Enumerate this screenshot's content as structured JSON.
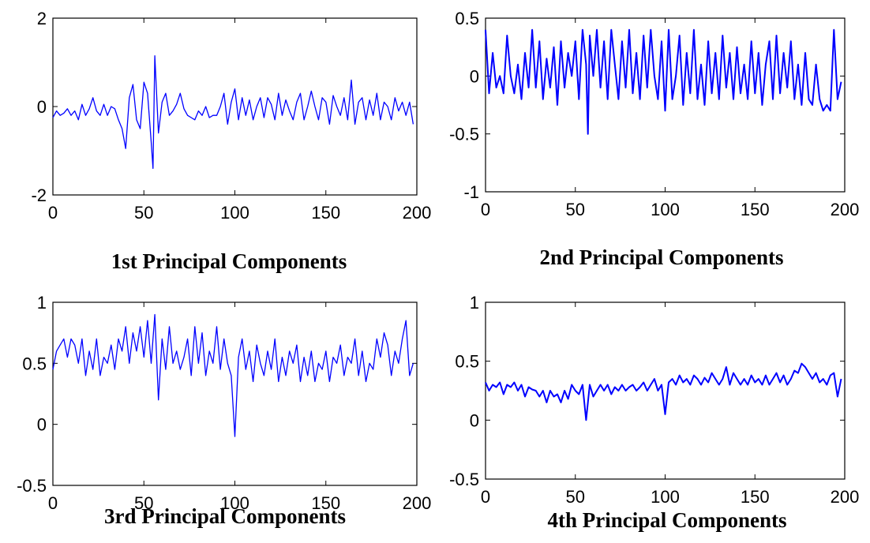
{
  "chart_data": [
    {
      "type": "line",
      "title": "1st Principal Components",
      "xlim": [
        0,
        200
      ],
      "ylim": [
        -2,
        2
      ],
      "xticks": [
        0,
        50,
        100,
        150,
        200
      ],
      "yticks": [
        -2,
        0,
        2
      ],
      "xtick_labels": [
        "0",
        "50",
        "100",
        "150",
        "200"
      ],
      "ytick_labels": [
        "-2",
        "0",
        "2"
      ],
      "series": [
        {
          "color": "#0000ff",
          "x": [
            0,
            2,
            4,
            6,
            8,
            10,
            12,
            14,
            16,
            18,
            20,
            22,
            24,
            26,
            28,
            30,
            32,
            34,
            36,
            38,
            40,
            42,
            44,
            46,
            48,
            50,
            52,
            54,
            55,
            56,
            58,
            60,
            62,
            64,
            66,
            68,
            70,
            72,
            74,
            76,
            78,
            80,
            82,
            84,
            86,
            88,
            90,
            92,
            94,
            96,
            98,
            100,
            102,
            104,
            106,
            108,
            110,
            112,
            114,
            116,
            118,
            120,
            122,
            124,
            126,
            128,
            130,
            132,
            134,
            136,
            138,
            140,
            142,
            144,
            146,
            148,
            150,
            152,
            154,
            156,
            158,
            160,
            162,
            164,
            166,
            168,
            170,
            172,
            174,
            176,
            178,
            180,
            182,
            184,
            186,
            188,
            190,
            192,
            194,
            196,
            198
          ],
          "y": [
            -0.25,
            -0.1,
            -0.2,
            -0.15,
            -0.05,
            -0.2,
            -0.1,
            -0.3,
            0.05,
            -0.2,
            -0.05,
            0.2,
            -0.1,
            -0.2,
            0.05,
            -0.2,
            0.0,
            -0.05,
            -0.3,
            -0.5,
            -0.95,
            0.2,
            0.5,
            -0.3,
            -0.5,
            0.55,
            0.3,
            -0.8,
            -1.4,
            1.15,
            -0.6,
            0.1,
            0.3,
            -0.2,
            -0.1,
            0.05,
            0.3,
            -0.05,
            -0.2,
            -0.25,
            -0.3,
            -0.1,
            -0.2,
            0.0,
            -0.25,
            -0.2,
            -0.2,
            0.0,
            0.3,
            -0.4,
            0.1,
            0.4,
            -0.3,
            0.2,
            -0.2,
            0.15,
            -0.3,
            0.0,
            0.2,
            -0.25,
            0.2,
            0.05,
            -0.3,
            0.3,
            -0.2,
            0.15,
            -0.1,
            -0.3,
            0.1,
            0.3,
            -0.3,
            0.0,
            0.35,
            0.0,
            -0.3,
            0.2,
            0.1,
            -0.4,
            0.25,
            0.0,
            -0.2,
            0.2,
            -0.3,
            0.6,
            -0.4,
            0.1,
            0.2,
            -0.3,
            0.15,
            -0.2,
            0.3,
            -0.3,
            0.1,
            0.0,
            -0.3,
            0.2,
            -0.1,
            0.1,
            -0.2,
            0.1,
            -0.4
          ]
        }
      ]
    },
    {
      "type": "line",
      "title": "2nd Principal Components",
      "xlim": [
        0,
        200
      ],
      "ylim": [
        -1,
        0.5
      ],
      "xticks": [
        0,
        50,
        100,
        150,
        200
      ],
      "yticks": [
        -1,
        -0.5,
        0,
        0.5
      ],
      "xtick_labels": [
        "0",
        "50",
        "100",
        "150",
        "200"
      ],
      "ytick_labels": [
        "-1",
        "-0.5",
        "0",
        "0.5"
      ],
      "series": [
        {
          "color": "#0000ff",
          "x": [
            0,
            2,
            4,
            6,
            8,
            10,
            12,
            14,
            16,
            18,
            20,
            22,
            24,
            26,
            28,
            30,
            32,
            34,
            36,
            38,
            40,
            42,
            44,
            46,
            48,
            50,
            52,
            54,
            56,
            57,
            58,
            60,
            62,
            64,
            66,
            68,
            70,
            72,
            74,
            76,
            78,
            80,
            82,
            84,
            86,
            88,
            90,
            92,
            94,
            96,
            98,
            100,
            102,
            104,
            106,
            108,
            110,
            112,
            114,
            116,
            118,
            120,
            122,
            124,
            126,
            128,
            130,
            132,
            134,
            136,
            138,
            140,
            142,
            144,
            146,
            148,
            150,
            152,
            154,
            156,
            158,
            160,
            162,
            164,
            166,
            168,
            170,
            172,
            174,
            176,
            178,
            180,
            182,
            184,
            186,
            188,
            190,
            192,
            194,
            196,
            198
          ],
          "y": [
            0.4,
            -0.15,
            0.2,
            -0.1,
            0.0,
            -0.15,
            0.35,
            0.0,
            -0.15,
            0.1,
            -0.2,
            0.2,
            -0.1,
            0.4,
            -0.1,
            0.3,
            -0.2,
            0.15,
            -0.1,
            0.25,
            -0.25,
            0.3,
            -0.1,
            0.2,
            0.0,
            0.3,
            -0.2,
            0.4,
            0.1,
            -0.5,
            0.35,
            0.0,
            0.4,
            -0.1,
            0.3,
            -0.2,
            0.4,
            0.1,
            -0.2,
            0.3,
            -0.1,
            0.4,
            -0.15,
            0.2,
            -0.2,
            0.35,
            -0.1,
            0.4,
            0.0,
            -0.2,
            0.3,
            -0.3,
            0.4,
            -0.2,
            0.0,
            0.35,
            -0.25,
            0.2,
            -0.15,
            0.4,
            -0.2,
            0.1,
            -0.25,
            0.3,
            -0.15,
            0.2,
            -0.2,
            0.35,
            -0.1,
            0.2,
            -0.2,
            0.25,
            -0.15,
            0.1,
            -0.2,
            0.3,
            -0.15,
            0.2,
            -0.25,
            0.1,
            0.3,
            -0.2,
            0.35,
            -0.15,
            0.2,
            -0.1,
            0.3,
            -0.2,
            0.1,
            -0.25,
            0.2,
            -0.2,
            -0.25,
            0.1,
            -0.2,
            -0.3,
            -0.25,
            -0.3,
            0.4,
            -0.2,
            -0.05
          ]
        }
      ]
    },
    {
      "type": "line",
      "title": "3rd Principal Components",
      "xlim": [
        0,
        200
      ],
      "ylim": [
        -0.5,
        1
      ],
      "xticks": [
        0,
        50,
        100,
        150,
        200
      ],
      "yticks": [
        -0.5,
        0,
        0.5,
        1
      ],
      "xtick_labels": [
        "0",
        "50",
        "100",
        "150",
        "200"
      ],
      "ytick_labels": [
        "-0.5",
        "0",
        "0.5",
        "1"
      ],
      "series": [
        {
          "color": "#0000ff",
          "x": [
            0,
            2,
            4,
            6,
            8,
            10,
            12,
            14,
            16,
            18,
            20,
            22,
            24,
            26,
            28,
            30,
            32,
            34,
            36,
            38,
            40,
            42,
            44,
            46,
            48,
            50,
            52,
            54,
            56,
            58,
            60,
            62,
            64,
            66,
            68,
            70,
            72,
            74,
            76,
            78,
            80,
            82,
            84,
            86,
            88,
            90,
            92,
            94,
            96,
            98,
            100,
            102,
            104,
            106,
            108,
            110,
            112,
            114,
            116,
            118,
            120,
            122,
            124,
            126,
            128,
            130,
            132,
            134,
            136,
            138,
            140,
            142,
            144,
            146,
            148,
            150,
            152,
            154,
            156,
            158,
            160,
            162,
            164,
            166,
            168,
            170,
            172,
            174,
            176,
            178,
            180,
            182,
            184,
            186,
            188,
            190,
            192,
            194,
            196,
            198
          ],
          "y": [
            0.45,
            0.6,
            0.65,
            0.7,
            0.55,
            0.7,
            0.65,
            0.5,
            0.7,
            0.4,
            0.6,
            0.45,
            0.7,
            0.4,
            0.55,
            0.5,
            0.65,
            0.45,
            0.7,
            0.6,
            0.8,
            0.5,
            0.75,
            0.6,
            0.8,
            0.55,
            0.85,
            0.5,
            0.9,
            0.2,
            0.7,
            0.45,
            0.8,
            0.5,
            0.6,
            0.45,
            0.55,
            0.7,
            0.4,
            0.8,
            0.5,
            0.75,
            0.4,
            0.6,
            0.5,
            0.8,
            0.45,
            0.7,
            0.5,
            0.4,
            -0.1,
            0.55,
            0.7,
            0.45,
            0.6,
            0.35,
            0.65,
            0.5,
            0.4,
            0.6,
            0.45,
            0.7,
            0.35,
            0.55,
            0.4,
            0.6,
            0.5,
            0.65,
            0.35,
            0.55,
            0.4,
            0.6,
            0.35,
            0.5,
            0.45,
            0.6,
            0.35,
            0.55,
            0.5,
            0.65,
            0.4,
            0.55,
            0.5,
            0.7,
            0.4,
            0.6,
            0.35,
            0.5,
            0.45,
            0.7,
            0.55,
            0.75,
            0.65,
            0.4,
            0.6,
            0.5,
            0.7,
            0.85,
            0.4,
            0.5
          ]
        }
      ]
    },
    {
      "type": "line",
      "title": "4th Principal Components",
      "xlim": [
        0,
        200
      ],
      "ylim": [
        -0.5,
        1
      ],
      "xticks": [
        0,
        50,
        100,
        150,
        200
      ],
      "yticks": [
        -0.5,
        0,
        0.5,
        1
      ],
      "xtick_labels": [
        "0",
        "50",
        "100",
        "150",
        "200"
      ],
      "ytick_labels": [
        "-0.5",
        "0",
        "0.5",
        "1"
      ],
      "series": [
        {
          "color": "#0000ff",
          "x": [
            0,
            2,
            4,
            6,
            8,
            10,
            12,
            14,
            16,
            18,
            20,
            22,
            24,
            26,
            28,
            30,
            32,
            34,
            36,
            38,
            40,
            42,
            44,
            46,
            48,
            50,
            52,
            54,
            56,
            58,
            60,
            62,
            64,
            66,
            68,
            70,
            72,
            74,
            76,
            78,
            80,
            82,
            84,
            86,
            88,
            90,
            92,
            94,
            96,
            98,
            100,
            102,
            104,
            106,
            108,
            110,
            112,
            114,
            116,
            118,
            120,
            122,
            124,
            126,
            128,
            130,
            132,
            134,
            136,
            138,
            140,
            142,
            144,
            146,
            148,
            150,
            152,
            154,
            156,
            158,
            160,
            162,
            164,
            166,
            168,
            170,
            172,
            174,
            176,
            178,
            180,
            182,
            184,
            186,
            188,
            190,
            192,
            194,
            196,
            198
          ],
          "y": [
            0.32,
            0.25,
            0.3,
            0.28,
            0.32,
            0.22,
            0.3,
            0.28,
            0.32,
            0.25,
            0.3,
            0.2,
            0.28,
            0.26,
            0.25,
            0.2,
            0.25,
            0.15,
            0.25,
            0.2,
            0.22,
            0.15,
            0.25,
            0.18,
            0.3,
            0.25,
            0.22,
            0.3,
            0.0,
            0.3,
            0.2,
            0.25,
            0.3,
            0.25,
            0.3,
            0.22,
            0.28,
            0.25,
            0.3,
            0.25,
            0.28,
            0.3,
            0.25,
            0.28,
            0.32,
            0.25,
            0.3,
            0.35,
            0.25,
            0.3,
            0.05,
            0.32,
            0.35,
            0.3,
            0.38,
            0.32,
            0.35,
            0.3,
            0.38,
            0.35,
            0.3,
            0.36,
            0.32,
            0.4,
            0.35,
            0.3,
            0.35,
            0.45,
            0.3,
            0.4,
            0.35,
            0.3,
            0.35,
            0.3,
            0.38,
            0.32,
            0.35,
            0.3,
            0.38,
            0.3,
            0.35,
            0.4,
            0.32,
            0.38,
            0.3,
            0.35,
            0.42,
            0.4,
            0.48,
            0.45,
            0.4,
            0.35,
            0.4,
            0.32,
            0.35,
            0.3,
            0.38,
            0.4,
            0.2,
            0.35
          ]
        }
      ]
    }
  ]
}
